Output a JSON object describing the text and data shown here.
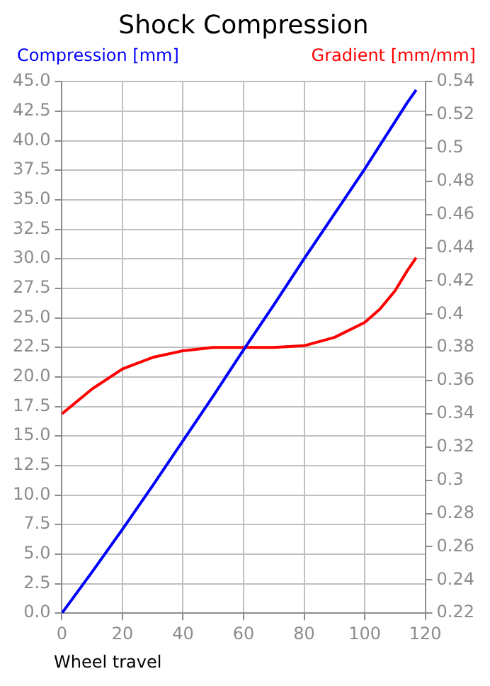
{
  "chart_data": {
    "type": "line",
    "title": "Shock Compression",
    "xlabel": "Wheel travel",
    "ylabel": "Compression [mm]",
    "y2label": "Gradient [mm/mm]",
    "x": [
      0,
      10,
      20,
      30,
      40,
      50,
      60,
      70,
      80,
      90,
      100,
      105,
      110,
      114,
      117
    ],
    "series": [
      {
        "color": "#0000ff",
        "values": [
          0,
          3.5,
          7.1,
          10.8,
          14.6,
          18.4,
          22.3,
          26.1,
          30.0,
          33.8,
          37.6,
          39.6,
          41.6,
          43.2,
          44.3
        ]
      },
      {
        "color": "#ff0000",
        "axis": "y2",
        "values": [
          0.34,
          0.355,
          0.367,
          0.374,
          0.378,
          0.38,
          0.38,
          0.38,
          0.381,
          0.386,
          0.395,
          0.403,
          0.414,
          0.426,
          0.434
        ]
      }
    ],
    "xlim": [
      0,
      120
    ],
    "xticks": [
      0,
      20,
      40,
      60,
      80,
      100,
      120
    ],
    "ylim": [
      0,
      45
    ],
    "yticks": [
      {
        "value": 0,
        "label": "0.0"
      },
      {
        "value": 2.5,
        "label": "2.5"
      },
      {
        "value": 5,
        "label": "5.0"
      },
      {
        "value": 7.5,
        "label": "7.5"
      },
      {
        "value": 10,
        "label": "10.0"
      },
      {
        "value": 12.5,
        "label": "12.5"
      },
      {
        "value": 15,
        "label": "15.0"
      },
      {
        "value": 17.5,
        "label": "17.5"
      },
      {
        "value": 20,
        "label": "20.0"
      },
      {
        "value": 22.5,
        "label": "22.5"
      },
      {
        "value": 25,
        "label": "25.0"
      },
      {
        "value": 27.5,
        "label": "27.5"
      },
      {
        "value": 30,
        "label": "30.0"
      },
      {
        "value": 32.5,
        "label": "32.5"
      },
      {
        "value": 35,
        "label": "35.0"
      },
      {
        "value": 37.5,
        "label": "37.5"
      },
      {
        "value": 40,
        "label": "40.0"
      },
      {
        "value": 42.5,
        "label": "42.5"
      },
      {
        "value": 45,
        "label": "45.0"
      }
    ],
    "y2lim": [
      0.22,
      0.54
    ],
    "y2ticks": [
      0.22,
      0.24,
      0.26,
      0.28,
      0.3,
      0.32,
      0.34,
      0.36,
      0.38,
      0.4,
      0.42,
      0.44,
      0.46,
      0.48,
      0.5,
      0.52,
      0.54
    ],
    "grid": true,
    "legend": false,
    "marker": "none",
    "line_style": "solid"
  }
}
